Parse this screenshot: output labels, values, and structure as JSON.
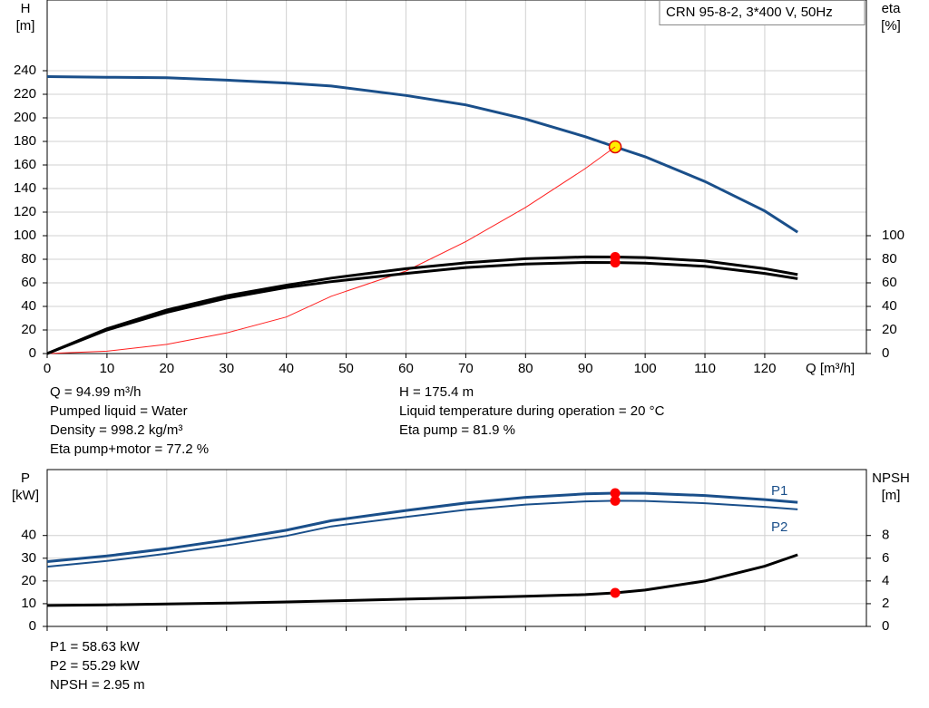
{
  "chart_data": [
    {
      "type": "line",
      "title": "CRN 95-8-2, 3*400 V, 50Hz",
      "ylabel": [
        "H",
        "[m]"
      ],
      "y2label": [
        "eta",
        "[%]"
      ],
      "xlabel": "Q [m³/h]",
      "x": [
        0,
        10,
        20,
        30,
        40,
        47.5,
        60,
        70,
        80,
        90,
        94.99,
        100,
        110,
        120,
        125.5
      ],
      "xlim": [
        0,
        137
      ],
      "xticks": [
        0,
        10,
        20,
        30,
        40,
        50,
        60,
        70,
        80,
        90,
        100,
        110,
        120
      ],
      "ylim": [
        0,
        300
      ],
      "yticks": [
        0,
        20,
        40,
        60,
        80,
        100,
        120,
        140,
        160,
        180,
        200,
        220,
        240
      ],
      "y2lim": [
        0,
        300
      ],
      "y2ticks": [
        0,
        20,
        40,
        60,
        80,
        100
      ],
      "grid": true,
      "duty_x": 94.99,
      "series": [
        {
          "color": "#1a4f8a",
          "line_width": 3,
          "marker": "#ffee00",
          "values": [
            235,
            234.5,
            234,
            232,
            229.5,
            227,
            219,
            211,
            199,
            184,
            175.4,
            167,
            146,
            121,
            103
          ]
        },
        {
          "color": "#ff2020",
          "line_width": 1,
          "values": [
            0,
            2,
            7.8,
            17.5,
            31,
            48.6,
            70,
            95,
            124,
            157,
            175.4,
            null,
            null,
            null,
            null
          ]
        },
        {
          "color": "#000000",
          "line_width": 3,
          "axis": "y2",
          "marker": "#ff0000",
          "values": [
            0,
            21,
            37,
            49,
            58,
            64,
            72,
            77,
            80.5,
            82,
            81.9,
            81.5,
            78.5,
            72,
            67
          ]
        },
        {
          "color": "#000000",
          "line_width": 3,
          "axis": "y2",
          "marker": "#ff0000",
          "values": [
            0,
            20,
            35,
            47,
            56,
            61,
            68,
            73,
            76,
            77.3,
            77.2,
            76.8,
            74,
            68,
            63.5
          ]
        }
      ],
      "notes_left": [
        "Q = 94.99 m³/h",
        "Pumped liquid = Water",
        "Density = 998.2 kg/m³",
        "Eta pump+motor = 77.2 %"
      ],
      "notes_right": [
        "H = 175.4 m",
        "Liquid temperature during operation = 20 °C",
        "Eta pump = 81.9 %"
      ]
    },
    {
      "type": "line",
      "ylabel": [
        "P",
        "[kW]"
      ],
      "y2label": [
        "NPSH",
        "[m]"
      ],
      "x": [
        0,
        10,
        20,
        30,
        40,
        47.5,
        60,
        70,
        80,
        90,
        94.99,
        100,
        110,
        120,
        125.5
      ],
      "xlim": [
        0,
        137
      ],
      "xticks": [
        0,
        10,
        20,
        30,
        40,
        50,
        60,
        70,
        80,
        90,
        100,
        110,
        120
      ],
      "xtick_labels": false,
      "ylim": [
        0,
        69
      ],
      "yticks": [
        0,
        10,
        20,
        30,
        40
      ],
      "y2lim": [
        0,
        13.8
      ],
      "y2ticks": [
        0,
        2,
        4,
        6,
        8
      ],
      "grid": true,
      "duty_x": 94.99,
      "series": [
        {
          "name": "P1",
          "color": "#1a4f8a",
          "line_width": 3,
          "marker": "#ff0000",
          "values": [
            28.5,
            31,
            34.2,
            38,
            42.3,
            46.5,
            51,
            54.3,
            56.8,
            58.3,
            58.63,
            58.6,
            57.6,
            55.8,
            54.6
          ]
        },
        {
          "name": "P2",
          "color": "#1a4f8a",
          "line_width": 2,
          "marker": "#ff0000",
          "values": [
            26.3,
            28.8,
            32,
            35.7,
            39.8,
            44,
            48.2,
            51.3,
            53.6,
            55,
            55.29,
            55.2,
            54.2,
            52.6,
            51.5
          ]
        },
        {
          "color": "#000000",
          "line_width": 3,
          "axis": "y2",
          "marker": "#ff0000",
          "values": [
            1.84,
            1.9,
            1.97,
            2.05,
            2.15,
            2.24,
            2.4,
            2.52,
            2.65,
            2.8,
            2.95,
            3.2,
            4.0,
            5.3,
            6.3
          ]
        }
      ],
      "notes_left": [
        "P1 = 58.63 kW",
        "P2 = 55.29 kW",
        "NPSH = 2.95 m"
      ]
    }
  ]
}
